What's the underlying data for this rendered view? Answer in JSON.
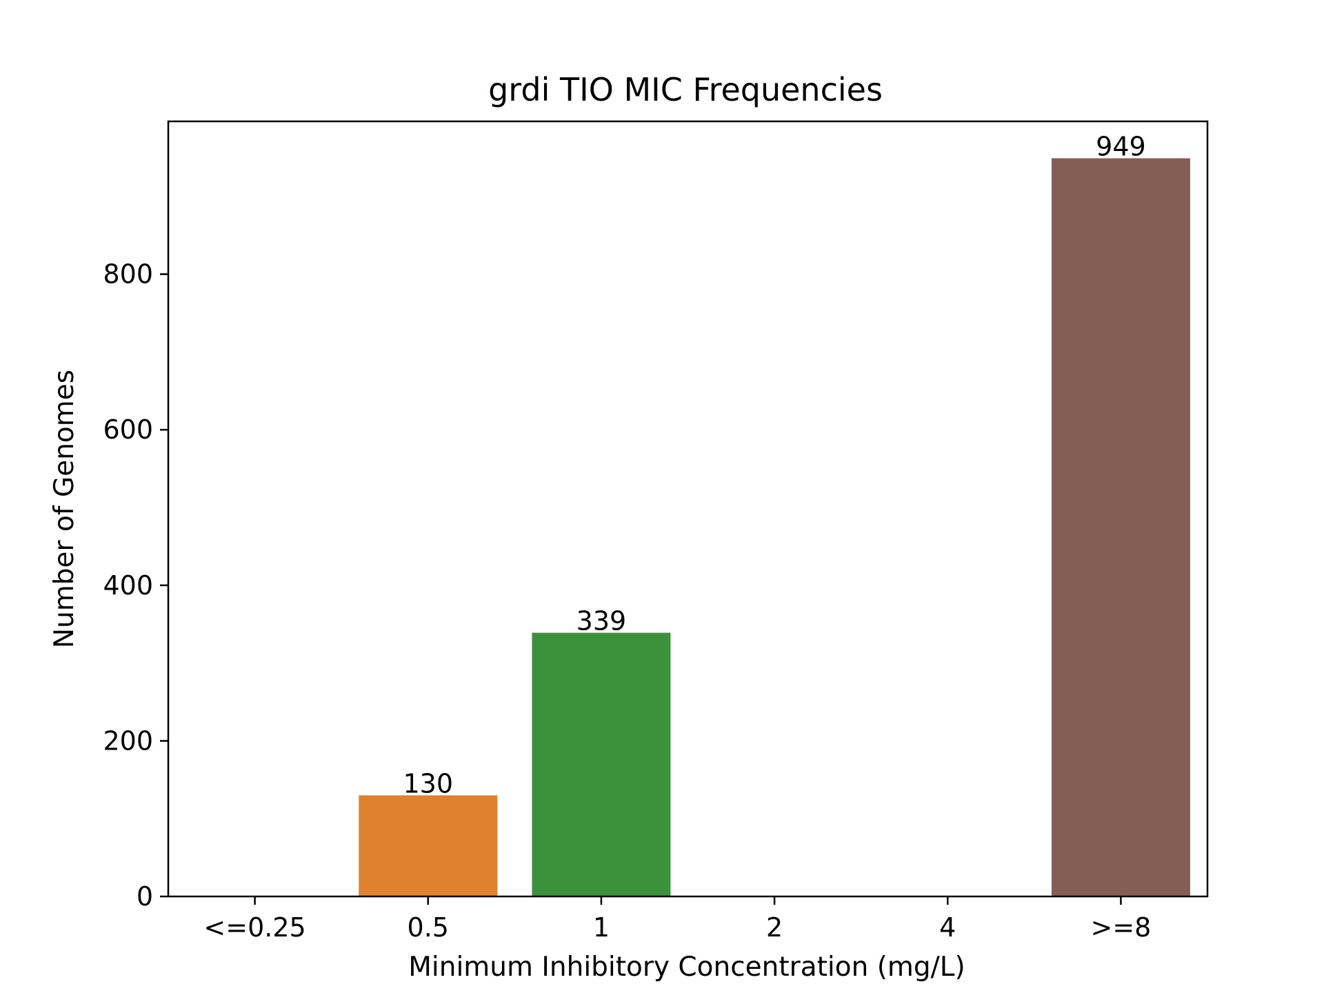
{
  "chart_data": {
    "type": "bar",
    "title": "grdi TIO MIC Frequencies",
    "xlabel": "Minimum Inhibitory Concentration (mg/L)",
    "ylabel": "Number of Genomes",
    "categories": [
      "<=0.25",
      "0.5",
      "1",
      "2",
      "4",
      ">=8"
    ],
    "values": [
      0,
      130,
      339,
      0,
      0,
      949
    ],
    "data_labels": [
      "",
      "130",
      "339",
      "",
      "",
      "949"
    ],
    "colors": [
      "#1f77b4",
      "#e0812f",
      "#3b923b",
      "#c0392b",
      "#8e6bb8",
      "#845e55"
    ],
    "ylim": [
      0,
      996.45
    ],
    "yticks": [
      0,
      200,
      400,
      600,
      800
    ],
    "ytick_labels": [
      "0",
      "200",
      "400",
      "600",
      "800"
    ],
    "grid": false,
    "legend": "none"
  }
}
